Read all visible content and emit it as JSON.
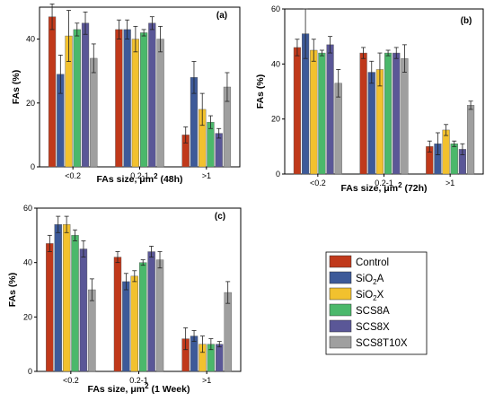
{
  "legend": [
    "Control",
    "SiO2A",
    "SiO2X",
    "SCS8A",
    "SCS8X",
    "SCS8T10X"
  ],
  "colors": [
    "#c0391b",
    "#3d5a99",
    "#f2c12e",
    "#4bb86b",
    "#5a5797",
    "#9f9f9f"
  ],
  "chart_data": [
    {
      "type": "bar",
      "panel": "(a)",
      "categories": [
        "<0.2",
        "0.2-1",
        ">1"
      ],
      "ylabel": "FAs (%)",
      "xlabel_prefix": "FAs size, μm",
      "xlabel_suffix": " (48h)",
      "ylim": [
        0,
        50
      ],
      "yticks": [
        0,
        20,
        40
      ],
      "series": [
        {
          "name": "Control",
          "values": [
            47,
            43,
            10
          ],
          "errors": [
            4,
            3,
            2.5
          ]
        },
        {
          "name": "SiO2A",
          "values": [
            29,
            43,
            28
          ],
          "errors": [
            6,
            3,
            5
          ]
        },
        {
          "name": "SiO2X",
          "values": [
            41,
            40,
            18
          ],
          "errors": [
            8,
            4,
            5
          ]
        },
        {
          "name": "SCS8A",
          "values": [
            43,
            42,
            14
          ],
          "errors": [
            2,
            1,
            2
          ]
        },
        {
          "name": "SCS8X",
          "values": [
            45,
            45,
            10.5
          ],
          "errors": [
            3.5,
            2,
            1.5
          ]
        },
        {
          "name": "SCS8T10X",
          "values": [
            34,
            40,
            25
          ],
          "errors": [
            4.5,
            4,
            4.5
          ]
        }
      ]
    },
    {
      "type": "bar",
      "panel": "(b)",
      "categories": [
        "<0.2",
        "0.2-1",
        ">1"
      ],
      "ylabel": "FAs (%)",
      "xlabel_prefix": "FAs size, μm",
      "xlabel_suffix": " (72h)",
      "ylim": [
        0,
        60
      ],
      "yticks": [
        0,
        20,
        40,
        60
      ],
      "series": [
        {
          "name": "Control",
          "values": [
            46,
            44,
            10
          ],
          "errors": [
            3,
            2,
            2
          ]
        },
        {
          "name": "SiO2A",
          "values": [
            51,
            37,
            11
          ],
          "errors": [
            9,
            4,
            4
          ]
        },
        {
          "name": "SiO2X",
          "values": [
            45,
            38,
            16
          ],
          "errors": [
            4,
            6,
            2
          ]
        },
        {
          "name": "SCS8A",
          "values": [
            44,
            44,
            11
          ],
          "errors": [
            1,
            1,
            1
          ]
        },
        {
          "name": "SCS8X",
          "values": [
            47,
            44,
            9
          ],
          "errors": [
            3,
            2,
            2
          ]
        },
        {
          "name": "SCS8T10X",
          "values": [
            33,
            42,
            25
          ],
          "errors": [
            5,
            5,
            1.5
          ]
        }
      ]
    },
    {
      "type": "bar",
      "panel": "(c)",
      "categories": [
        "<0.2",
        "0.2-1",
        ">1"
      ],
      "ylabel": "FAs (%)",
      "xlabel_prefix": "FAs size, μm",
      "xlabel_suffix": " (1 Week)",
      "ylim": [
        0,
        60
      ],
      "yticks": [
        0,
        20,
        40,
        60
      ],
      "series": [
        {
          "name": "Control",
          "values": [
            47,
            42,
            12
          ],
          "errors": [
            3,
            2,
            4
          ]
        },
        {
          "name": "SiO2A",
          "values": [
            54,
            33,
            13
          ],
          "errors": [
            3,
            3,
            2
          ]
        },
        {
          "name": "SiO2X",
          "values": [
            54,
            35,
            10
          ],
          "errors": [
            3,
            2,
            3
          ]
        },
        {
          "name": "SCS8A",
          "values": [
            50,
            40,
            10
          ],
          "errors": [
            2,
            1,
            2
          ]
        },
        {
          "name": "SCS8X",
          "values": [
            45,
            44,
            10
          ],
          "errors": [
            3,
            2,
            1
          ]
        },
        {
          "name": "SCS8T10X",
          "values": [
            30,
            41,
            29
          ],
          "errors": [
            4,
            3,
            4
          ]
        }
      ]
    }
  ]
}
